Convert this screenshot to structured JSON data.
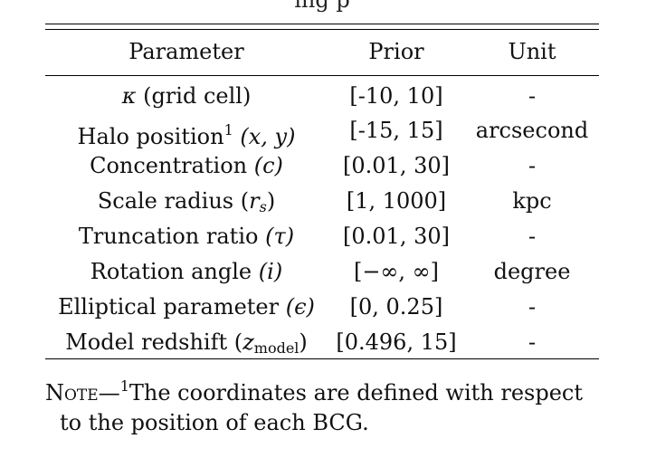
{
  "caption_partial": "ing       p",
  "table": {
    "headers": {
      "parameter": "Parameter",
      "prior": "Prior",
      "unit": "Unit"
    },
    "rows": [
      {
        "param_text": "(grid cell)",
        "symbol": "κ",
        "prior": "[-10, 10]",
        "unit": "-"
      },
      {
        "param_text": "Halo position",
        "sup": "1",
        "symbol": "(x,  y)",
        "prior": "[-15, 15]",
        "unit": "arcsecond"
      },
      {
        "param_text": "Concentration",
        "symbol": "(c)",
        "prior": "[0.01, 30]",
        "unit": "-"
      },
      {
        "param_text": "Scale radius",
        "symbol_main": "r",
        "symbol_sub": "s",
        "prior": "[1, 1000]",
        "unit": "kpc"
      },
      {
        "param_text": "Truncation ratio",
        "symbol": "(τ)",
        "prior": "[0.01, 30]",
        "unit": "-"
      },
      {
        "param_text": "Rotation angle",
        "symbol": "(i)",
        "prior": "[−∞, ∞]",
        "unit": "degree"
      },
      {
        "param_text": "Elliptical parameter",
        "symbol": "(ϵ)",
        "prior": "[0, 0.25]",
        "unit": "-"
      },
      {
        "param_text": "Model redshift",
        "symbol_main": "z",
        "symbol_sub": "model",
        "prior": "[0.496, 15]",
        "unit": "-"
      }
    ]
  },
  "note": {
    "label": "Note",
    "dash": "—",
    "sup": "1",
    "line1": "The coordinates are defined with respect",
    "line2": "to the position of each BCG."
  }
}
